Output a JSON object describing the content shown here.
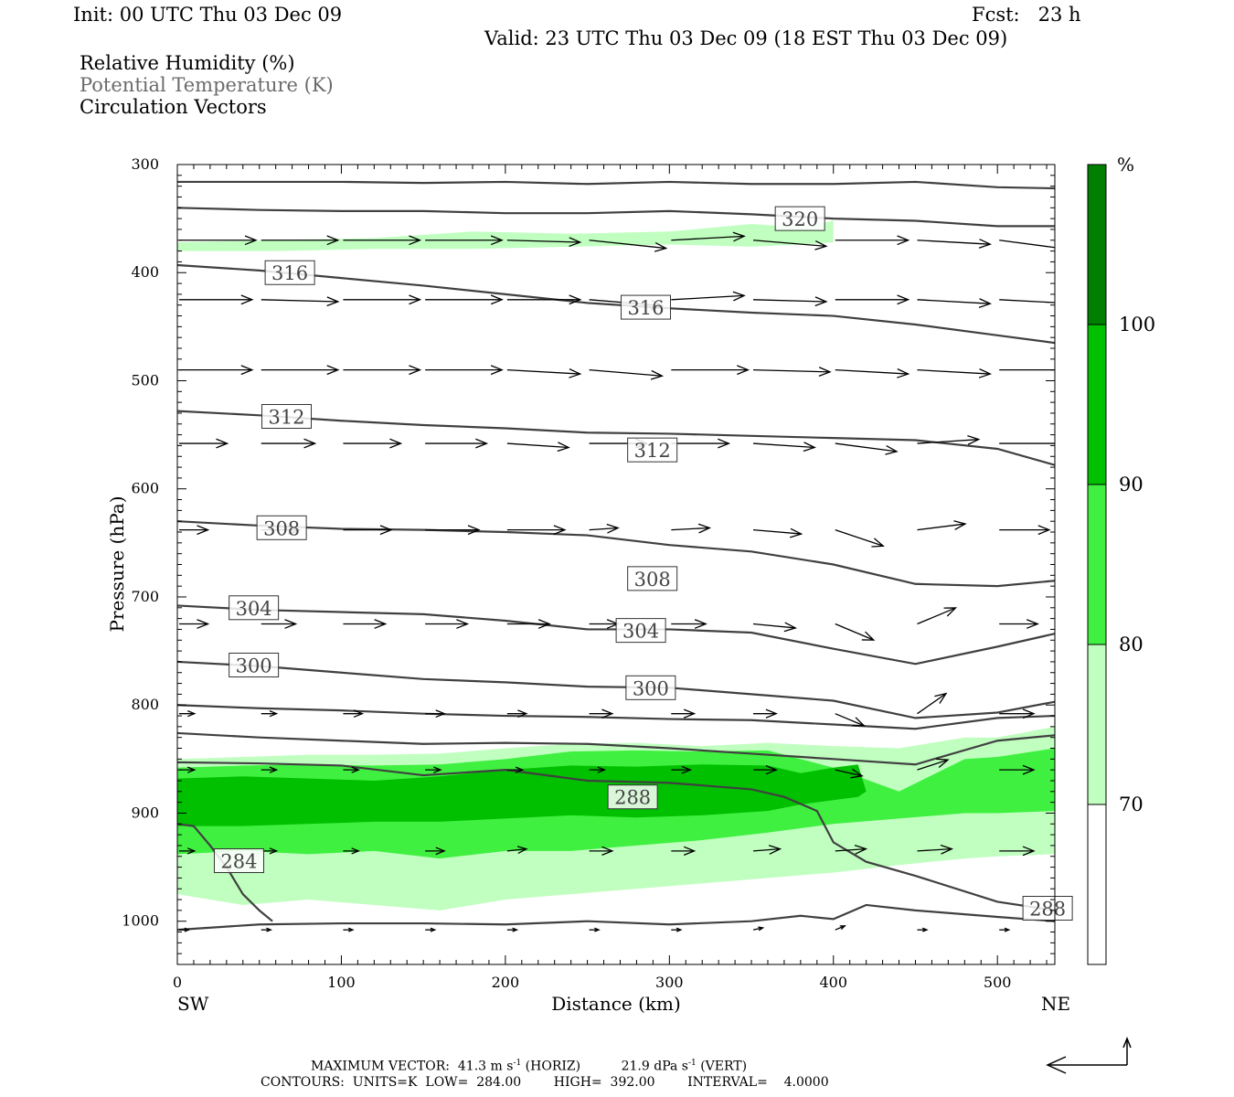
{
  "header": {
    "init": "Init: 00 UTC Thu 03 Dec 09",
    "fcst": "Fcst:   23 h",
    "valid": "Valid: 23 UTC Thu 03 Dec 09 (18 EST Thu 03 Dec 09)"
  },
  "legend_lines": [
    "Relative Humidity (%)",
    "Potential Temperature (K)",
    "Circulation Vectors"
  ],
  "colors": {
    "rh70": "#c0ffc0",
    "rh80": "#40f040",
    "rh90": "#00c000",
    "rh100": "#008000",
    "theta": "#404040",
    "vector": "#000000"
  },
  "chart_data": {
    "type": "cross-section",
    "xlabel": "Distance (km)",
    "ylabel": "Pressure (hPa)",
    "xlim": [
      0,
      535
    ],
    "ylim": [
      1040,
      300
    ],
    "x_ticks": [
      0,
      100,
      200,
      300,
      400,
      500
    ],
    "y_ticks": [
      300,
      400,
      500,
      600,
      700,
      800,
      900,
      1000
    ],
    "end_labels": {
      "left": "SW",
      "right": "NE"
    },
    "colorbar": {
      "unit": "%",
      "levels": [
        70,
        80,
        90,
        100
      ]
    },
    "theta_labels": [
      {
        "value": "320",
        "x": 364,
        "p": 350
      },
      {
        "value": "316",
        "x": 53,
        "p": 400
      },
      {
        "value": "316",
        "x": 270,
        "p": 432
      },
      {
        "value": "312",
        "x": 51,
        "p": 533
      },
      {
        "value": "312",
        "x": 274,
        "p": 564
      },
      {
        "value": "308",
        "x": 48,
        "p": 636
      },
      {
        "value": "308",
        "x": 274,
        "p": 683
      },
      {
        "value": "304",
        "x": 31,
        "p": 710
      },
      {
        "value": "304",
        "x": 267,
        "p": 731
      },
      {
        "value": "300",
        "x": 31,
        "p": 763
      },
      {
        "value": "300",
        "x": 273,
        "p": 784
      },
      {
        "value": "288",
        "x": 262,
        "p": 885
      },
      {
        "value": "284",
        "x": 22,
        "p": 944
      },
      {
        "value": "288",
        "x": 515,
        "p": 988
      }
    ],
    "theta_lines": [
      {
        "x": [
          0,
          50,
          100,
          150,
          200,
          250,
          300,
          350,
          400,
          450,
          500,
          535
        ],
        "p": [
          316,
          316,
          316,
          317,
          316,
          318,
          316,
          318,
          318,
          316,
          321,
          322
        ]
      },
      {
        "x": [
          0,
          50,
          100,
          150,
          200,
          250,
          300,
          350,
          400,
          450,
          500,
          535
        ],
        "p": [
          340,
          342,
          343,
          343,
          345,
          345,
          343,
          346,
          350,
          352,
          357,
          357
        ]
      },
      {
        "x": [
          0,
          50,
          100,
          150,
          200,
          250,
          300,
          350,
          400,
          450,
          500,
          535
        ],
        "p": [
          393,
          398,
          405,
          412,
          420,
          428,
          433,
          437,
          440,
          448,
          458,
          465
        ]
      },
      {
        "x": [
          0,
          50,
          100,
          150,
          200,
          250,
          300,
          350,
          400,
          450,
          500,
          535
        ],
        "p": [
          528,
          532,
          537,
          541,
          544,
          548,
          549,
          551,
          553,
          555,
          563,
          578
        ]
      },
      {
        "x": [
          0,
          50,
          100,
          150,
          200,
          250,
          300,
          350,
          400,
          450,
          500,
          535
        ],
        "p": [
          630,
          634,
          637,
          638,
          640,
          643,
          652,
          658,
          670,
          688,
          690,
          685
        ]
      },
      {
        "x": [
          0,
          50,
          100,
          150,
          200,
          250,
          300,
          350,
          400,
          450,
          500,
          535
        ],
        "p": [
          708,
          712,
          714,
          716,
          722,
          730,
          730,
          733,
          748,
          762,
          746,
          734
        ]
      },
      {
        "x": [
          0,
          50,
          100,
          150,
          200,
          250,
          300,
          350,
          400,
          450,
          500,
          535
        ],
        "p": [
          760,
          764,
          770,
          776,
          779,
          783,
          784,
          790,
          796,
          812,
          807,
          797
        ]
      },
      {
        "x": [
          0,
          50,
          100,
          150,
          200,
          250,
          300,
          350,
          400,
          450,
          500,
          535
        ],
        "p": [
          800,
          803,
          805,
          808,
          810,
          811,
          813,
          814,
          818,
          822,
          812,
          810
        ]
      },
      {
        "x": [
          0,
          50,
          100,
          150,
          200,
          250,
          300,
          350,
          400,
          450,
          500,
          535
        ],
        "p": [
          826,
          830,
          833,
          836,
          835,
          836,
          840,
          845,
          850,
          855,
          833,
          828
        ]
      },
      {
        "x": [
          0,
          50,
          100,
          150,
          200,
          250,
          300,
          350,
          370,
          390,
          400,
          420,
          450,
          500,
          535
        ],
        "p": [
          853,
          854,
          856,
          865,
          860,
          870,
          872,
          878,
          885,
          898,
          927,
          945,
          958,
          982,
          990
        ]
      },
      {
        "x": [
          0,
          10,
          20,
          30,
          40,
          50,
          58
        ],
        "p": [
          910,
          912,
          930,
          950,
          975,
          990,
          1000
        ]
      },
      {
        "x": [
          0,
          50,
          100,
          150,
          200,
          250,
          300,
          350,
          380,
          400,
          420,
          450,
          500,
          535
        ],
        "p": [
          1008,
          1003,
          1002,
          1002,
          1003,
          1000,
          1003,
          1000,
          995,
          998,
          985,
          990,
          996,
          1000
        ]
      }
    ],
    "rh_bands": [
      {
        "level": 70,
        "x": [
          0,
          40,
          80,
          120,
          160,
          200,
          240,
          280,
          320,
          360,
          400,
          440,
          480,
          500,
          535
        ],
        "top": [
          850,
          848,
          846,
          846,
          845,
          840,
          836,
          835,
          838,
          835,
          838,
          840,
          830,
          830,
          820
        ],
        "bottom": [
          975,
          985,
          980,
          985,
          990,
          980,
          975,
          970,
          965,
          960,
          955,
          948,
          942,
          940,
          938
        ]
      },
      {
        "level": 80,
        "x": [
          0,
          40,
          80,
          120,
          160,
          200,
          240,
          280,
          320,
          360,
          400,
          440,
          480,
          500,
          535
        ],
        "top": [
          858,
          856,
          855,
          856,
          855,
          850,
          843,
          842,
          843,
          842,
          858,
          880,
          850,
          848,
          840
        ],
        "bottom": [
          938,
          935,
          938,
          935,
          942,
          935,
          935,
          930,
          925,
          918,
          910,
          905,
          900,
          900,
          898
        ]
      },
      {
        "level": 90,
        "x": [
          0,
          40,
          80,
          120,
          160,
          200,
          240,
          280,
          320,
          360,
          380,
          400,
          415,
          420
        ],
        "top": [
          868,
          866,
          868,
          870,
          866,
          860,
          856,
          857,
          855,
          856,
          863,
          858,
          855,
          880
        ],
        "bottom": [
          912,
          912,
          910,
          908,
          908,
          905,
          902,
          904,
          902,
          898,
          892,
          888,
          885,
          880
        ]
      },
      {
        "level": 70,
        "x": [
          0,
          60,
          120,
          180,
          240,
          300,
          350,
          380,
          400
        ],
        "top": [
          372,
          370,
          368,
          362,
          364,
          362,
          355,
          358,
          352
        ],
        "bottom": [
          380,
          380,
          378,
          378,
          376,
          374,
          376,
          374,
          372
        ]
      }
    ],
    "vectors": [
      {
        "p": 370,
        "x": [
          0,
          50,
          100,
          150,
          200,
          250,
          300,
          350,
          400,
          450,
          500
        ],
        "u": [
          40,
          40,
          40,
          40,
          38,
          40,
          38,
          38,
          38,
          38,
          40
        ],
        "w": [
          0,
          0,
          0,
          0,
          -1,
          -4,
          2,
          -3,
          0,
          -2,
          -5
        ]
      },
      {
        "p": 425,
        "x": [
          0,
          50,
          100,
          150,
          200,
          250,
          300,
          350,
          400,
          450,
          500
        ],
        "u": [
          38,
          40,
          40,
          40,
          38,
          38,
          38,
          38,
          38,
          38,
          40
        ],
        "w": [
          0,
          -1,
          0,
          0,
          0,
          -3,
          2,
          -1,
          0,
          -2,
          -2
        ]
      },
      {
        "p": 490,
        "x": [
          0,
          50,
          100,
          150,
          200,
          250,
          300,
          350,
          400,
          450,
          500
        ],
        "u": [
          38,
          40,
          40,
          40,
          38,
          38,
          40,
          40,
          38,
          38,
          40
        ],
        "w": [
          0,
          0,
          0,
          0,
          -2,
          -3,
          0,
          -1,
          -2,
          -2,
          0
        ]
      },
      {
        "p": 558,
        "x": [
          0,
          50,
          100,
          150,
          200,
          250,
          300,
          350,
          400,
          450,
          500
        ],
        "u": [
          25,
          28,
          30,
          32,
          32,
          30,
          30,
          32,
          32,
          32,
          36
        ],
        "w": [
          0,
          0,
          0,
          0,
          -2,
          0,
          0,
          -2,
          -4,
          2,
          0
        ]
      },
      {
        "p": 638,
        "x": [
          0,
          50,
          100,
          150,
          200,
          250,
          300,
          350,
          400,
          450,
          500
        ],
        "u": [
          15,
          20,
          25,
          28,
          30,
          15,
          20,
          25,
          25,
          25,
          26
        ],
        "w": [
          0,
          0,
          0,
          0,
          0,
          1,
          1,
          -2,
          -8,
          3,
          0
        ]
      },
      {
        "p": 725,
        "x": [
          0,
          50,
          100,
          150,
          200,
          250,
          300,
          350,
          400,
          450,
          500
        ],
        "u": [
          15,
          18,
          22,
          22,
          22,
          15,
          18,
          22,
          20,
          20,
          20
        ],
        "w": [
          0,
          0,
          0,
          0,
          0,
          0,
          0,
          -2,
          -8,
          8,
          0
        ]
      },
      {
        "p": 808,
        "x": [
          0,
          50,
          100,
          150,
          200,
          250,
          300,
          350,
          400,
          450,
          500
        ],
        "u": [
          8,
          8,
          10,
          10,
          10,
          12,
          12,
          12,
          15,
          15,
          18
        ],
        "w": [
          0,
          0,
          0,
          0,
          0,
          0,
          0,
          0,
          -6,
          10,
          0
        ]
      },
      {
        "p": 860,
        "x": [
          0,
          50,
          100,
          150,
          200,
          250,
          300,
          350,
          400,
          450,
          500
        ],
        "u": [
          8,
          8,
          8,
          8,
          8,
          8,
          10,
          12,
          14,
          16,
          18
        ],
        "w": [
          0,
          0,
          0,
          0,
          0,
          0,
          0,
          0,
          -3,
          5,
          0
        ]
      },
      {
        "p": 935,
        "x": [
          0,
          50,
          100,
          150,
          200,
          250,
          300,
          350,
          400,
          450,
          500
        ],
        "u": [
          8,
          8,
          8,
          10,
          10,
          12,
          12,
          14,
          16,
          18,
          18
        ],
        "w": [
          0,
          0,
          0,
          0,
          1,
          0,
          0,
          1,
          1,
          1,
          0
        ]
      },
      {
        "p": 1008,
        "x": [
          0,
          50,
          100,
          150,
          200,
          250,
          300,
          350,
          400,
          450,
          500
        ],
        "u": [
          5,
          5,
          5,
          5,
          5,
          5,
          5,
          5,
          5,
          5,
          5
        ],
        "w": [
          0,
          0,
          0,
          0,
          0,
          0,
          0,
          1,
          2,
          0,
          0
        ]
      }
    ],
    "vector_scale": {
      "horiz": 41.3,
      "vert": 21.9
    }
  },
  "footer": {
    "max_vector_label": "MAXIMUM VECTOR:",
    "max_horiz": "41.3 m s",
    "exp": "-1",
    "horiz_tag": "(HORIZ)",
    "max_vert": "21.9 dPa s",
    "vert_tag": "(VERT)",
    "contours": "CONTOURS:  UNITS=K  LOW=  284.00        HIGH=  392.00        INTERVAL=    4.0000"
  }
}
